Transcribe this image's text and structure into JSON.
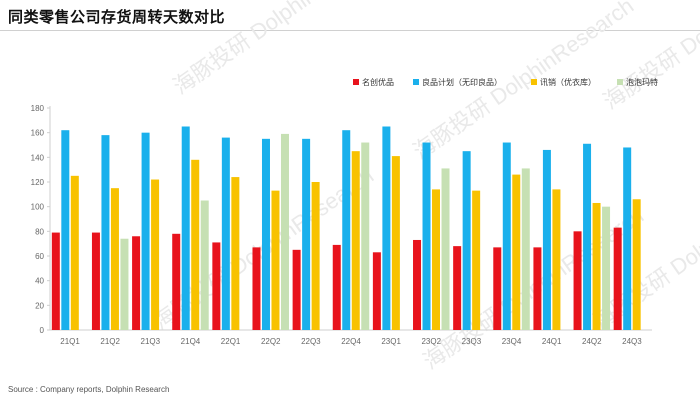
{
  "header": {
    "title": "同类零售公司存货周转天数对比"
  },
  "footer": {
    "source": "Source : Company reports, Dolphin Research"
  },
  "watermark": {
    "text": "海豚投研 DolphinResearch"
  },
  "chart_data": {
    "type": "bar",
    "title": "",
    "xlabel": "",
    "ylabel": "",
    "ylim": [
      0,
      180
    ],
    "yticks": [
      0,
      20,
      40,
      60,
      80,
      100,
      120,
      140,
      160,
      180
    ],
    "grid": false,
    "legend_position": "top-right",
    "categories": [
      "21Q1",
      "21Q2",
      "21Q3",
      "21Q4",
      "22Q1",
      "22Q2",
      "22Q3",
      "22Q4",
      "23Q1",
      "23Q2",
      "23Q3",
      "23Q4",
      "24Q1",
      "24Q2",
      "24Q3"
    ],
    "series": [
      {
        "name": "名创优品",
        "color": "#e8131c",
        "values": [
          79,
          79,
          76,
          78,
          71,
          67,
          65,
          69,
          63,
          73,
          68,
          67,
          67,
          80,
          83
        ]
      },
      {
        "name": "良品计划（无印良品）",
        "color": "#1ab0ec",
        "values": [
          162,
          158,
          160,
          165,
          156,
          155,
          155,
          162,
          165,
          152,
          145,
          152,
          146,
          151,
          148
        ]
      },
      {
        "name": "讯销（优衣库）",
        "color": "#f8c200",
        "values": [
          125,
          115,
          122,
          138,
          124,
          113,
          120,
          145,
          141,
          114,
          113,
          126,
          114,
          103,
          106
        ]
      },
      {
        "name": "泡泡玛特",
        "color": "#c6e0b3",
        "values": [
          null,
          74,
          null,
          105,
          null,
          159,
          null,
          152,
          null,
          131,
          null,
          131,
          null,
          100,
          null
        ]
      }
    ]
  }
}
